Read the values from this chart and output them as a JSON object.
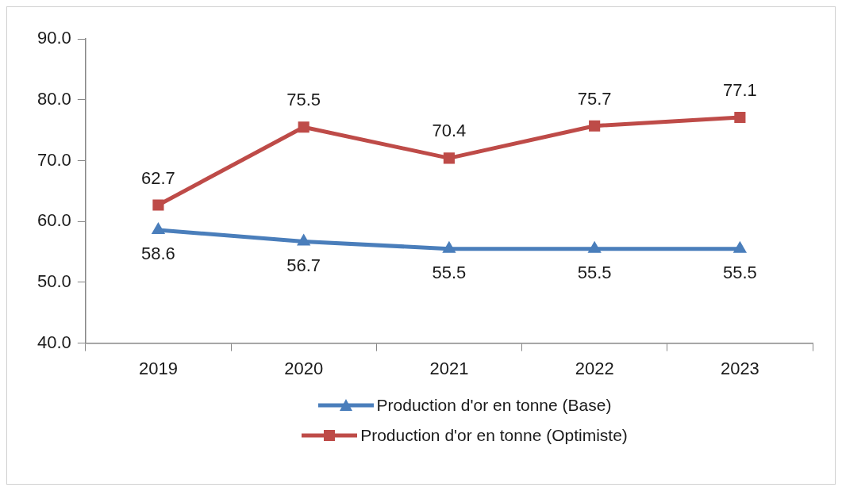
{
  "chart_data": {
    "type": "line",
    "categories": [
      "2019",
      "2020",
      "2021",
      "2022",
      "2023"
    ],
    "series": [
      {
        "name": "Production d'or en tonne (Base)",
        "color": "#4a7ebb",
        "marker": "triangle",
        "values": [
          58.6,
          56.7,
          55.5,
          55.5,
          55.5
        ]
      },
      {
        "name": "Production d'or en tonne (Optimiste)",
        "color": "#be4b48",
        "marker": "square",
        "values": [
          62.7,
          75.5,
          70.4,
          75.7,
          77.1
        ]
      }
    ],
    "ylim": [
      40,
      90
    ],
    "yticks": [
      {
        "value": 40,
        "label": "40.0"
      },
      {
        "value": 50,
        "label": "50.0"
      },
      {
        "value": 60,
        "label": "60.0"
      },
      {
        "value": 70,
        "label": "70.0"
      },
      {
        "value": 80,
        "label": "80.0"
      },
      {
        "value": 90,
        "label": "90.0"
      }
    ],
    "grid": false,
    "legend": "bottom",
    "data_labels": true,
    "line_style": "solid"
  }
}
